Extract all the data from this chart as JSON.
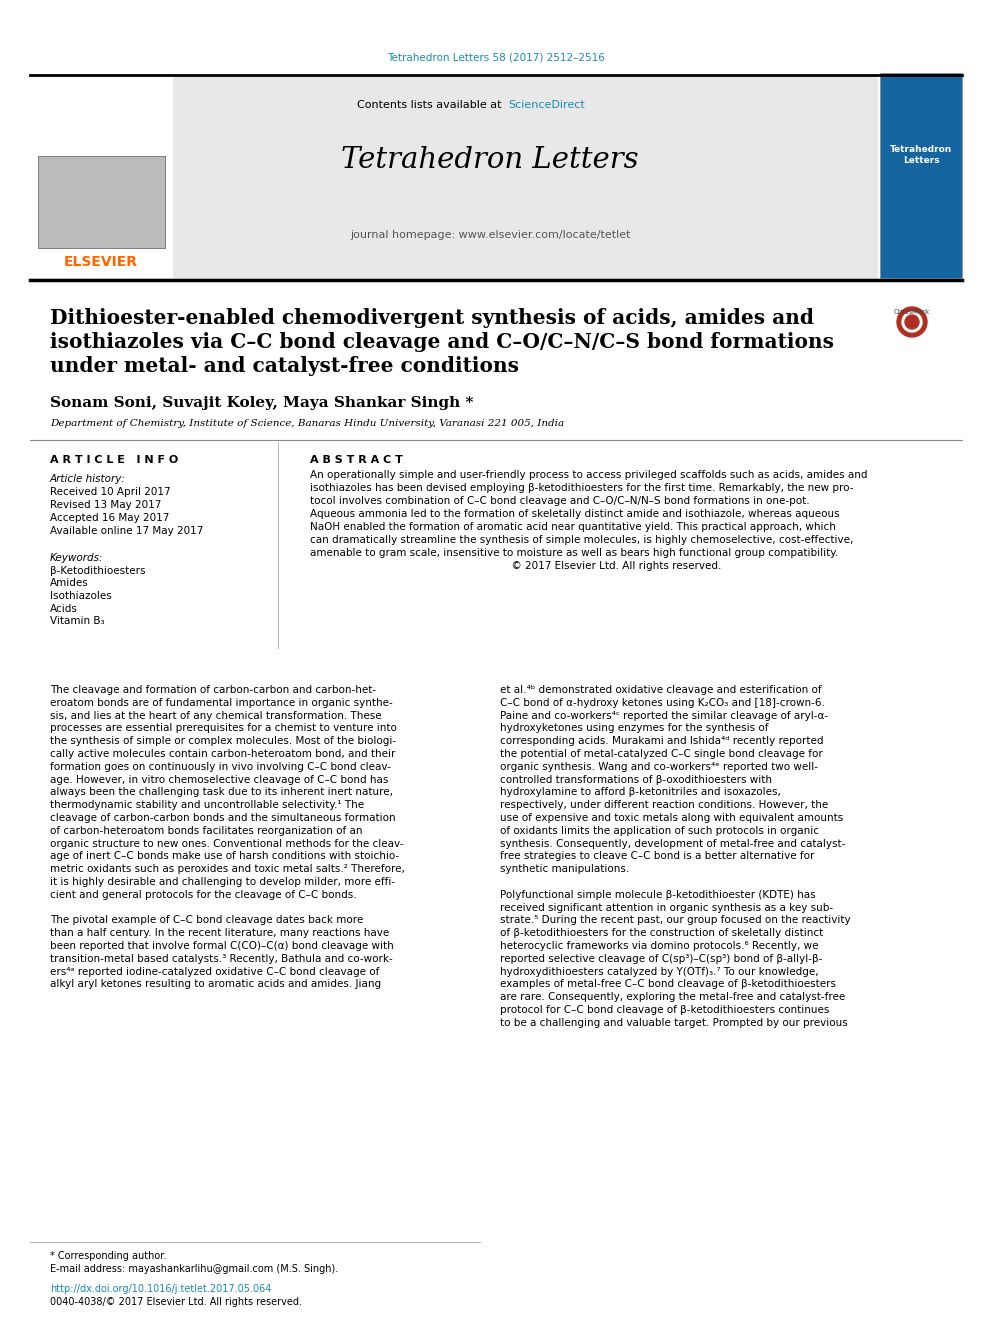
{
  "page_bg": "#ffffff",
  "top_citation": "Tetrahedron Letters 58 (2017) 2512–2516",
  "top_citation_color": "#1a8ab5",
  "header_bg": "#e8e8e8",
  "header_contents": "Contents lists available at",
  "sciencedirect_text": "ScienceDirect",
  "sciencedirect_color": "#1a8ab5",
  "journal_name": "Tetrahedron Letters",
  "journal_homepage": "journal homepage: www.elsevier.com/locate/tetlet",
  "elsevier_color": "#ff6600",
  "article_title_line1": "Dithioester-enabled chemodivergent synthesis of acids, amides and",
  "article_title_line2": "isothiazoles via C–C bond cleavage and C–O/C–N/C–S bond formations",
  "article_title_line3": "under metal- and catalyst-free conditions",
  "authors": "Sonam Soni, Suvajit Koley, Maya Shankar Singh",
  "affiliation": "Department of Chemistry, Institute of Science, Banaras Hindu University, Varanasi 221 005, India",
  "article_info_header": "A R T I C L E   I N F O",
  "abstract_header": "A B S T R A C T",
  "article_history_label": "Article history:",
  "received": "Received 10 April 2017",
  "revised": "Revised 13 May 2017",
  "accepted": "Accepted 16 May 2017",
  "available": "Available online 17 May 2017",
  "keywords_label": "Keywords:",
  "keywords": [
    "β-Ketodithioesters",
    "Amides",
    "Isothiazoles",
    "Acids",
    "Vitamin B₃"
  ],
  "abstract_lines": [
    "An operationally simple and user-friendly process to access privileged scaffolds such as acids, amides and",
    "isothiazoles has been devised employing β-ketodithioesters for the first time. Remarkably, the new pro-",
    "tocol involves combination of C–C bond cleavage and C–O/C–N/N–S bond formations in one-pot.",
    "Aqueous ammonia led to the formation of skeletally distinct amide and isothiazole, whereas aqueous",
    "NaOH enabled the formation of aromatic acid near quantitative yield. This practical approach, which",
    "can dramatically streamline the synthesis of simple molecules, is highly chemoselective, cost-effective,",
    "amenable to gram scale, insensitive to moisture as well as bears high functional group compatibility.",
    "                                                              © 2017 Elsevier Ltd. All rights reserved."
  ],
  "body1_lines": [
    "The cleavage and formation of carbon-carbon and carbon-het-",
    "eroatom bonds are of fundamental importance in organic synthe-",
    "sis, and lies at the heart of any chemical transformation. These",
    "processes are essential prerequisites for a chemist to venture into",
    "the synthesis of simple or complex molecules. Most of the biologi-",
    "cally active molecules contain carbon-heteroatom bond, and their",
    "formation goes on continuously in vivo involving C–C bond cleav-",
    "age. However, in vitro chemoselective cleavage of C–C bond has",
    "always been the challenging task due to its inherent inert nature,",
    "thermodynamic stability and uncontrollable selectivity.¹ The",
    "cleavage of carbon-carbon bonds and the simultaneous formation",
    "of carbon-heteroatom bonds facilitates reorganization of an",
    "organic structure to new ones. Conventional methods for the cleav-",
    "age of inert C–C bonds make use of harsh conditions with stoichio-",
    "metric oxidants such as peroxides and toxic metal salts.² Therefore,",
    "it is highly desirable and challenging to develop milder, more effi-",
    "cient and general protocols for the cleavage of C–C bonds.",
    "",
    "The pivotal example of C–C bond cleavage dates back more",
    "than a half century. In the recent literature, many reactions have",
    "been reported that involve formal C(CO)–C(α) bond cleavage with",
    "transition-metal based catalysts.³ Recently, Bathula and co-work-",
    "ers⁴ᵃ reported iodine-catalyzed oxidative C–C bond cleavage of",
    "alkyl aryl ketones resulting to aromatic acids and amides. Jiang"
  ],
  "body2_lines": [
    "et al.⁴ᵇ demonstrated oxidative cleavage and esterification of",
    "C–C bond of α-hydroxy ketones using K₂CO₃ and [18]-crown-6.",
    "Paine and co-workers⁴ᶜ reported the similar cleavage of aryl-α-",
    "hydroxyketones using enzymes for the synthesis of",
    "corresponding acids. Murakami and Ishida⁴ᵈ recently reported",
    "the potential of metal-catalyzed C–C single bond cleavage for",
    "organic synthesis. Wang and co-workers⁴ᵉ reported two well-",
    "controlled transformations of β-oxodithioesters with",
    "hydroxylamine to afford β-ketonitriles and isoxazoles,",
    "respectively, under different reaction conditions. However, the",
    "use of expensive and toxic metals along with equivalent amounts",
    "of oxidants limits the application of such protocols in organic",
    "synthesis. Consequently, development of metal-free and catalyst-",
    "free strategies to cleave C–C bond is a better alternative for",
    "synthetic manipulations.",
    "",
    "Polyfunctional simple molecule β-ketodithioester (KDTE) has",
    "received significant attention in organic synthesis as a key sub-",
    "strate.⁵ During the recent past, our group focused on the reactivity",
    "of β-ketodithioesters for the construction of skeletally distinct",
    "heterocyclic frameworks via domino protocols.⁶ Recently, we",
    "reported selective cleavage of C(sp³)–C(sp³) bond of β-allyl-β-",
    "hydroxydithioesters catalyzed by Y(OTf)₃.⁷ To our knowledge,",
    "examples of metal-free C–C bond cleavage of β-ketodithioesters",
    "are rare. Consequently, exploring the metal-free and catalyst-free",
    "protocol for C–C bond cleavage of β-ketodithioesters continues",
    "to be a challenging and valuable target. Prompted by our previous"
  ],
  "footnote_star": "* Corresponding author.",
  "footnote_email": "E-mail address: mayashankarlihu@gmail.com (M.S. Singh).",
  "doi_text": "http://dx.doi.org/10.1016/j.tetlet.2017.05.064",
  "issn_text": "0040-4038/© 2017 Elsevier Ltd. All rights reserved."
}
